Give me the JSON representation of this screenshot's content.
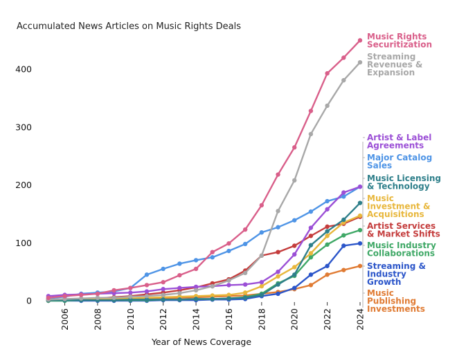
{
  "chart_data": {
    "type": "line",
    "title": "Accumulated News Articles on Music Rights Deals",
    "xlabel": "Year of News Coverage",
    "ylabel": "",
    "x": [
      2005,
      2006,
      2007,
      2008,
      2009,
      2010,
      2011,
      2012,
      2013,
      2014,
      2015,
      2016,
      2017,
      2018,
      2019,
      2020,
      2021,
      2022,
      2023,
      2024
    ],
    "xlim": [
      2004.5,
      2024
    ],
    "ylim": [
      0,
      460
    ],
    "x_ticks": [
      "2006",
      "2008",
      "2010",
      "2012",
      "2014",
      "2016",
      "2018",
      "2020",
      "2022",
      "2024"
    ],
    "y_ticks": [
      "0",
      "100",
      "200",
      "300",
      "400"
    ],
    "grid": false,
    "legend_position": "right",
    "series": [
      {
        "name": "Music Rights Securitization",
        "label_lines": [
          "Music Rights",
          "Securitization"
        ],
        "color": "#d95f8a",
        "values": [
          5,
          8,
          10,
          12,
          18,
          22,
          27,
          32,
          44,
          55,
          84,
          99,
          123,
          165,
          218,
          265,
          328,
          393,
          420,
          450
        ]
      },
      {
        "name": "Streaming Revenues & Expansion",
        "label_lines": [
          "Streaming",
          "Revenues &",
          "Expansion"
        ],
        "color": "#a8a8a8",
        "values": [
          2,
          3,
          4,
          5,
          5,
          7,
          8,
          10,
          13,
          18,
          25,
          35,
          48,
          78,
          155,
          208,
          288,
          337,
          381,
          412
        ]
      },
      {
        "name": "Artist & Label Agreements",
        "label_lines": [
          "Artist & Label",
          "Agreements"
        ],
        "color": "#9b4fd6",
        "values": [
          8,
          10,
          11,
          12,
          13,
          14,
          16,
          20,
          22,
          24,
          25,
          27,
          28,
          32,
          50,
          80,
          126,
          158,
          187,
          197
        ]
      },
      {
        "name": "Major Catalog Sales",
        "label_lines": [
          "Major Catalog",
          "Sales"
        ],
        "color": "#4e94e6",
        "values": [
          4,
          7,
          12,
          14,
          16,
          22,
          45,
          55,
          64,
          70,
          75,
          86,
          98,
          118,
          127,
          139,
          154,
          172,
          180,
          197
        ]
      },
      {
        "name": "Music Licensing & Technology",
        "label_lines": [
          "Music Licensing",
          "& Technology"
        ],
        "color": "#2e7f8a",
        "values": [
          1,
          1,
          1,
          1,
          1,
          2,
          2,
          2,
          2,
          3,
          3,
          4,
          5,
          10,
          28,
          45,
          96,
          120,
          140,
          169
        ]
      },
      {
        "name": "Music Investment & Acquisitions",
        "label_lines": [
          "Music",
          "Investment &",
          "Acquisitions"
        ],
        "color": "#e8b73c",
        "values": [
          2,
          2,
          3,
          3,
          4,
          4,
          5,
          6,
          7,
          8,
          9,
          10,
          14,
          25,
          42,
          58,
          82,
          112,
          135,
          147
        ]
      },
      {
        "name": "Artist Services & Market Shifts",
        "label_lines": [
          "Artist Services",
          "& Market Shifts"
        ],
        "color": "#c43c3c",
        "values": [
          1,
          2,
          3,
          4,
          6,
          8,
          11,
          14,
          18,
          23,
          30,
          37,
          52,
          78,
          84,
          95,
          112,
          128,
          133,
          145
        ]
      },
      {
        "name": "Music Industry Collaborations",
        "label_lines": [
          "Music Industry",
          "Collaborations"
        ],
        "color": "#3fa866",
        "values": [
          0,
          0,
          1,
          1,
          1,
          1,
          1,
          2,
          2,
          3,
          3,
          4,
          6,
          12,
          30,
          43,
          75,
          97,
          113,
          122
        ]
      },
      {
        "name": "Streaming & Industry Growth",
        "label_lines": [
          "Streaming &",
          "Industry",
          "Growth"
        ],
        "color": "#2b55c9",
        "values": [
          0,
          0,
          0,
          0,
          0,
          0,
          0,
          1,
          1,
          1,
          2,
          2,
          3,
          8,
          12,
          22,
          45,
          60,
          95,
          99
        ]
      },
      {
        "name": "Music Publishing Investments",
        "label_lines": [
          "Music",
          "Publishing",
          "Investments"
        ],
        "color": "#e07b33",
        "values": [
          2,
          2,
          2,
          3,
          3,
          4,
          4,
          5,
          5,
          6,
          7,
          8,
          9,
          12,
          15,
          20,
          27,
          45,
          53,
          60
        ]
      }
    ]
  }
}
